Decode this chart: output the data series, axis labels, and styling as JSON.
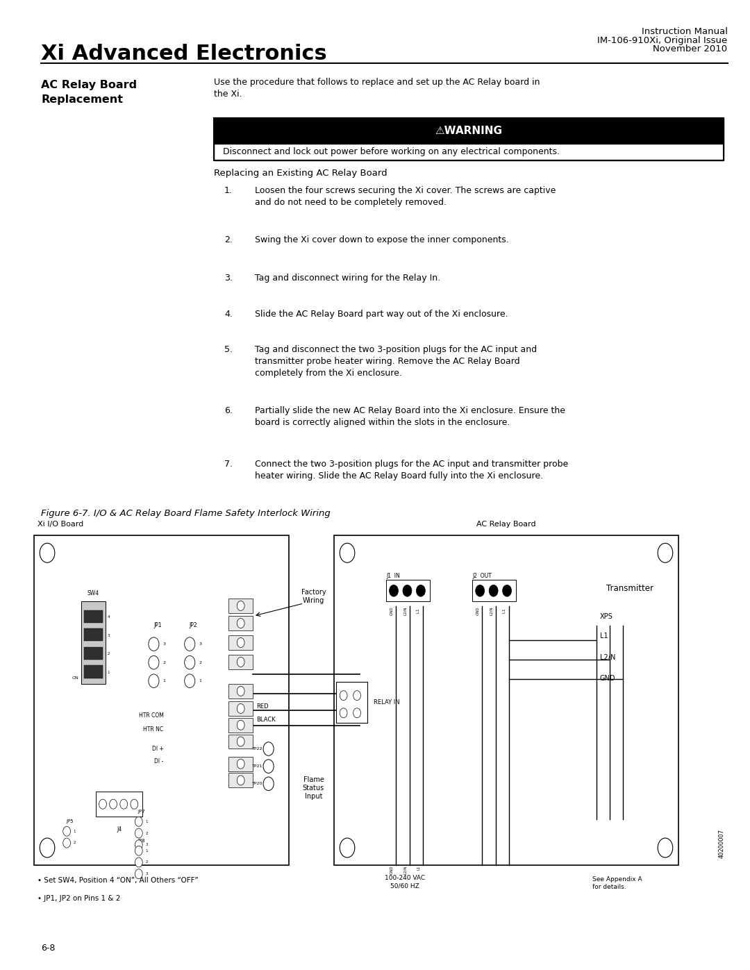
{
  "page_width": 10.8,
  "page_height": 13.97,
  "background_color": "#ffffff",
  "header_title": "Xi Advanced Electronics",
  "header_right_line1": "Instruction Manual",
  "header_right_line2": "IM-106-910Xi, Original Issue",
  "header_right_line3": "November 2010",
  "section_title": "AC Relay Board\nReplacement",
  "section_intro": "Use the procedure that follows to replace and set up the AC Relay board in\nthe Xi.",
  "warning_title": "⚠WARNING",
  "warning_text": "Disconnect and lock out power before working on any electrical components.",
  "subsection_title": "Replacing an Existing AC Relay Board",
  "steps": [
    "Loosen the four screws securing the Xi cover. The screws are captive\nand do not need to be completely removed.",
    "Swing the Xi cover down to expose the inner components.",
    "Tag and disconnect wiring for the Relay In.",
    "Slide the AC Relay Board part way out of the Xi enclosure.",
    "Tag and disconnect the two 3-position plugs for the AC input and\ntransmitter probe heater wiring. Remove the AC Relay Board\ncompletely from the Xi enclosure.",
    "Partially slide the new AC Relay Board into the Xi enclosure. Ensure the\nboard is correctly aligned within the slots in the enclosure.",
    "Connect the two 3-position plugs for the AC input and transmitter probe\nheater wiring. Slide the AC Relay Board fully into the Xi enclosure."
  ],
  "figure_caption": "Figure 6-7. I/O & AC Relay Board Flame Safety Interlock Wiring",
  "figure_label_left": "Xi I/O Board",
  "figure_label_right": "AC Relay Board",
  "figure_label_transmitter": "Transmitter",
  "footer_left": "6-8",
  "text_color": "#000000",
  "warning_bg": "#000000",
  "warning_text_color": "#ffffff",
  "warning_box_border": "#000000"
}
